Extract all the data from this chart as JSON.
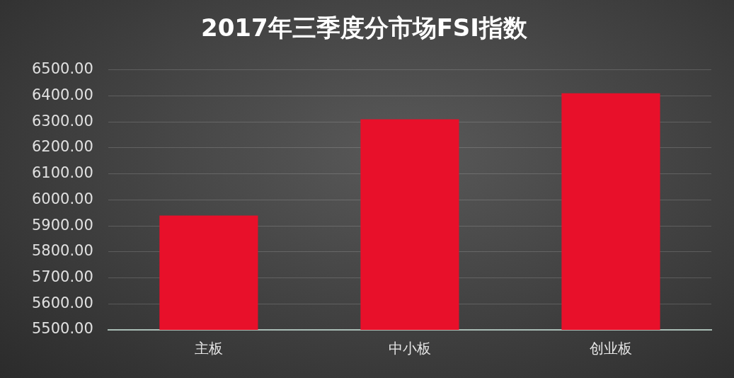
{
  "chart_data": {
    "type": "bar",
    "title": "2017年三季度分市场FSI指数",
    "categories": [
      "主板",
      "中小板",
      "创业板"
    ],
    "values": [
      5940,
      6310,
      6410
    ],
    "color": "#e8102a",
    "ylim": [
      5500,
      6500
    ],
    "yticks": [
      {
        "value": 5500,
        "label": "5500.00"
      },
      {
        "value": 5600,
        "label": "5600.00"
      },
      {
        "value": 5700,
        "label": "5700.00"
      },
      {
        "value": 5800,
        "label": "5800.00"
      },
      {
        "value": 5900,
        "label": "5900.00"
      },
      {
        "value": 6000,
        "label": "6000.00"
      },
      {
        "value": 6100,
        "label": "6100.00"
      },
      {
        "value": 6200,
        "label": "6200.00"
      },
      {
        "value": 6300,
        "label": "6300.00"
      },
      {
        "value": 6400,
        "label": "6400.00"
      },
      {
        "value": 6500,
        "label": "6500.00"
      }
    ],
    "grid": "y"
  }
}
